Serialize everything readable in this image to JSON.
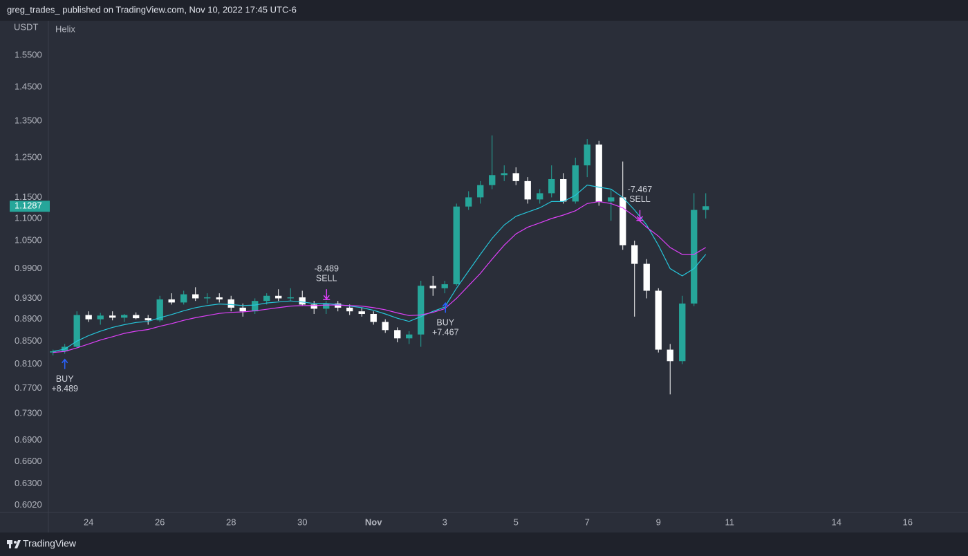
{
  "header": "greg_trades_ published on TradingView.com, Nov 10, 2022 17:45 UTC-6",
  "footer": {
    "brand": "TradingView"
  },
  "chart_data": {
    "type": "candlestick",
    "currency": "USDT",
    "indicator": "Helix",
    "x": [
      23.0,
      23.33,
      23.67,
      24.0,
      24.33,
      24.67,
      25.0,
      25.33,
      25.67,
      26.0,
      26.33,
      26.67,
      27.0,
      27.33,
      27.67,
      28.0,
      28.33,
      28.67,
      29.0,
      29.33,
      29.67,
      30.0,
      30.33,
      30.67,
      31.0,
      31.33,
      31.67,
      32.0,
      32.33,
      32.67,
      33.0,
      33.33,
      33.67,
      34.0,
      34.33,
      34.67,
      35.0,
      35.33,
      35.67,
      36.0,
      36.33,
      36.67,
      37.0,
      37.33,
      37.67,
      38.0,
      38.33,
      38.67,
      39.0,
      39.33,
      39.67,
      40.0,
      40.33,
      40.67,
      41.0,
      41.33
    ],
    "open": [
      0.83,
      0.832,
      0.84,
      0.898,
      0.89,
      0.897,
      0.893,
      0.898,
      0.892,
      0.888,
      0.928,
      0.922,
      0.938,
      0.93,
      0.932,
      0.928,
      0.912,
      0.905,
      0.925,
      0.935,
      0.93,
      0.932,
      0.918,
      0.91,
      0.92,
      0.912,
      0.905,
      0.9,
      0.885,
      0.87,
      0.855,
      0.862,
      0.955,
      0.95,
      0.958,
      1.128,
      1.15,
      1.18,
      1.205,
      1.21,
      1.19,
      1.145,
      1.16,
      1.195,
      1.14,
      1.23,
      1.285,
      1.14,
      1.15,
      1.04,
      1.0,
      0.945,
      0.835,
      0.815,
      0.92,
      1.12
    ],
    "high": [
      0.835,
      0.845,
      0.905,
      0.905,
      0.902,
      0.905,
      0.9,
      0.903,
      0.898,
      0.935,
      0.94,
      0.945,
      0.952,
      0.94,
      0.94,
      0.935,
      0.92,
      0.93,
      0.94,
      0.948,
      0.95,
      0.945,
      0.925,
      0.925,
      0.925,
      0.918,
      0.912,
      0.905,
      0.89,
      0.875,
      0.868,
      0.965,
      0.975,
      0.965,
      1.135,
      1.165,
      1.19,
      1.31,
      1.23,
      1.225,
      1.2,
      1.17,
      1.23,
      1.21,
      1.25,
      1.3,
      1.295,
      1.17,
      1.24,
      1.05,
      1.01,
      0.95,
      0.845,
      0.935,
      1.16,
      1.16
    ],
    "low": [
      0.825,
      0.828,
      0.838,
      0.885,
      0.88,
      0.888,
      0.885,
      0.89,
      0.88,
      0.885,
      0.918,
      0.918,
      0.925,
      0.92,
      0.922,
      0.905,
      0.895,
      0.9,
      0.918,
      0.925,
      0.925,
      0.915,
      0.9,
      0.9,
      0.905,
      0.898,
      0.895,
      0.88,
      0.865,
      0.848,
      0.845,
      0.84,
      0.935,
      0.94,
      0.955,
      1.12,
      1.135,
      1.17,
      1.19,
      1.18,
      1.135,
      1.135,
      1.15,
      1.135,
      1.135,
      1.2,
      1.13,
      1.095,
      1.03,
      0.895,
      0.93,
      0.83,
      0.76,
      0.81,
      0.915,
      1.1
    ],
    "close": [
      0.832,
      0.84,
      0.898,
      0.89,
      0.897,
      0.893,
      0.898,
      0.892,
      0.888,
      0.928,
      0.922,
      0.938,
      0.93,
      0.932,
      0.928,
      0.912,
      0.905,
      0.925,
      0.935,
      0.93,
      0.932,
      0.918,
      0.91,
      0.92,
      0.912,
      0.905,
      0.9,
      0.885,
      0.87,
      0.855,
      0.862,
      0.955,
      0.95,
      0.958,
      1.128,
      1.15,
      1.18,
      1.205,
      1.21,
      1.19,
      1.145,
      1.16,
      1.195,
      1.14,
      1.23,
      1.285,
      1.14,
      1.15,
      1.04,
      1.0,
      0.945,
      0.835,
      0.815,
      0.92,
      1.12,
      1.1287
    ],
    "up_color": "#26a69a",
    "down_color": "#ffffff",
    "lines": [
      {
        "color": "#26c6da",
        "values": [
          0.832,
          0.836,
          0.85,
          0.86,
          0.868,
          0.875,
          0.88,
          0.884,
          0.886,
          0.893,
          0.899,
          0.906,
          0.912,
          0.916,
          0.919,
          0.918,
          0.916,
          0.917,
          0.921,
          0.923,
          0.925,
          0.923,
          0.92,
          0.92,
          0.918,
          0.915,
          0.912,
          0.907,
          0.9,
          0.892,
          0.886,
          0.895,
          0.905,
          0.913,
          0.95,
          0.985,
          1.02,
          1.055,
          1.085,
          1.105,
          1.115,
          1.125,
          1.14,
          1.14,
          1.155,
          1.18,
          1.175,
          1.17,
          1.15,
          1.12,
          1.085,
          1.04,
          0.99,
          0.975,
          0.99,
          1.02
        ]
      },
      {
        "color": "#e040fb",
        "values": [
          0.83,
          0.832,
          0.838,
          0.845,
          0.852,
          0.858,
          0.864,
          0.868,
          0.871,
          0.877,
          0.882,
          0.888,
          0.893,
          0.897,
          0.901,
          0.903,
          0.904,
          0.906,
          0.909,
          0.912,
          0.915,
          0.916,
          0.916,
          0.917,
          0.917,
          0.916,
          0.915,
          0.912,
          0.908,
          0.902,
          0.897,
          0.898,
          0.903,
          0.91,
          0.93,
          0.955,
          0.98,
          1.01,
          1.04,
          1.065,
          1.08,
          1.09,
          1.1,
          1.108,
          1.118,
          1.135,
          1.14,
          1.135,
          1.125,
          1.105,
          1.08,
          1.06,
          1.035,
          1.02,
          1.02,
          1.035
        ]
      }
    ],
    "signals": [
      {
        "label": "BUY",
        "amount": "+8.489",
        "x": 23.33,
        "price": 0.818,
        "color": "#2962ff"
      },
      {
        "label": "SELL",
        "amount": "-8.489",
        "x": 30.68,
        "price": 0.929,
        "color": "#e040fb"
      },
      {
        "label": "BUY",
        "amount": "+7.467",
        "x": 34.02,
        "price": 0.921,
        "color": "#2962ff"
      },
      {
        "label": "SELL",
        "amount": "-7.467",
        "x": 39.48,
        "price": 1.097,
        "color": "#e040fb"
      }
    ],
    "last_price": 1.1287,
    "last_price_color": "#26a69a",
    "log_scale": true,
    "ylim": [
      0.593,
      1.667
    ],
    "yticks": [
      {
        "value": 1.55,
        "label": "1.5500"
      },
      {
        "value": 1.45,
        "label": "1.4500"
      },
      {
        "value": 1.35,
        "label": "1.3500"
      },
      {
        "value": 1.25,
        "label": "1.2500"
      },
      {
        "value": 1.15,
        "label": "1.1500"
      },
      {
        "value": 1.1,
        "label": "1.1000"
      },
      {
        "value": 1.05,
        "label": "1.0500"
      },
      {
        "value": 0.99,
        "label": "0.9900"
      },
      {
        "value": 0.93,
        "label": "0.9300"
      },
      {
        "value": 0.89,
        "label": "0.8900"
      },
      {
        "value": 0.85,
        "label": "0.8500"
      },
      {
        "value": 0.81,
        "label": "0.8100"
      },
      {
        "value": 0.77,
        "label": "0.7700"
      },
      {
        "value": 0.73,
        "label": "0.7300"
      },
      {
        "value": 0.69,
        "label": "0.6900"
      },
      {
        "value": 0.66,
        "label": "0.6600"
      },
      {
        "value": 0.63,
        "label": "0.6300"
      },
      {
        "value": 0.602,
        "label": "0.6020"
      }
    ],
    "xlim": [
      22.87,
      48.5
    ],
    "xticks": [
      24,
      26,
      28,
      30,
      {
        "value": 32,
        "label": "Nov"
      },
      {
        "value": 34,
        "label": "3"
      },
      {
        "value": 36,
        "label": "5"
      },
      {
        "value": 38,
        "label": "7"
      },
      {
        "value": 40,
        "label": "9"
      },
      {
        "value": 42,
        "label": "11"
      },
      {
        "value": 45,
        "label": "14"
      },
      {
        "value": 47,
        "label": "16"
      }
    ],
    "grid": false
  }
}
